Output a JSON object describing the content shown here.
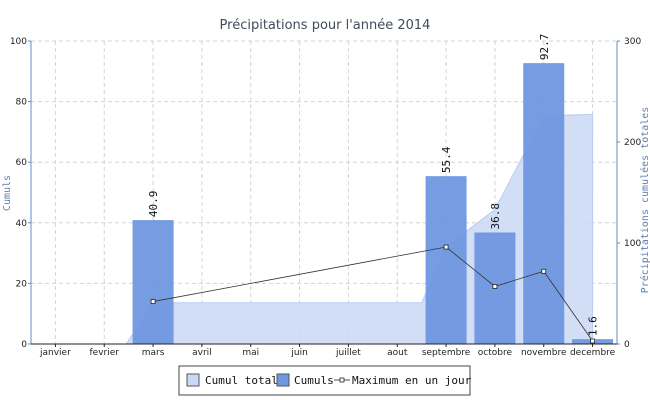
{
  "chart_data": {
    "type": "bar",
    "title": "Précipitations pour l'année 2014",
    "categories": [
      "janvier",
      "fevrier",
      "mars",
      "avril",
      "mai",
      "juin",
      "juillet",
      "aout",
      "septembre",
      "octobre",
      "novembre",
      "decembre"
    ],
    "ylabel_left": "Cumuls",
    "ylabel_right": "Précipitations cumulées totales",
    "ylim_left": [
      0,
      100
    ],
    "ylim_right": [
      0,
      300
    ],
    "yticks_left": [
      "0",
      "20",
      "40",
      "60",
      "80",
      "100"
    ],
    "yticks_right": [
      "0",
      "100",
      "200",
      "300"
    ],
    "grid": true,
    "legend_position": "bottom",
    "series": [
      {
        "name": "Cumul total",
        "kind": "area",
        "axis": "right",
        "color": "#c9d8f5",
        "values": [
          0,
          0,
          40.9,
          40.9,
          40.9,
          40.9,
          40.9,
          40.9,
          96.3,
          133.1,
          225.8,
          227.4
        ]
      },
      {
        "name": "Cumuls",
        "kind": "bar",
        "axis": "left",
        "color": "#6f97df",
        "values": [
          0,
          0,
          40.9,
          0,
          0,
          0,
          0,
          0,
          55.4,
          36.8,
          92.7,
          1.6
        ],
        "labels": [
          "",
          "",
          "40.9",
          "",
          "",
          "",
          "",
          "",
          "55.4",
          "36.8",
          "92.7",
          "1.6"
        ]
      },
      {
        "name": "Maximum en un jour",
        "kind": "line",
        "axis": "left",
        "color": "#333333",
        "points": [
          [
            2,
            14
          ],
          [
            8,
            32
          ],
          [
            9,
            19
          ],
          [
            10,
            24
          ],
          [
            11,
            1
          ]
        ]
      }
    ]
  }
}
